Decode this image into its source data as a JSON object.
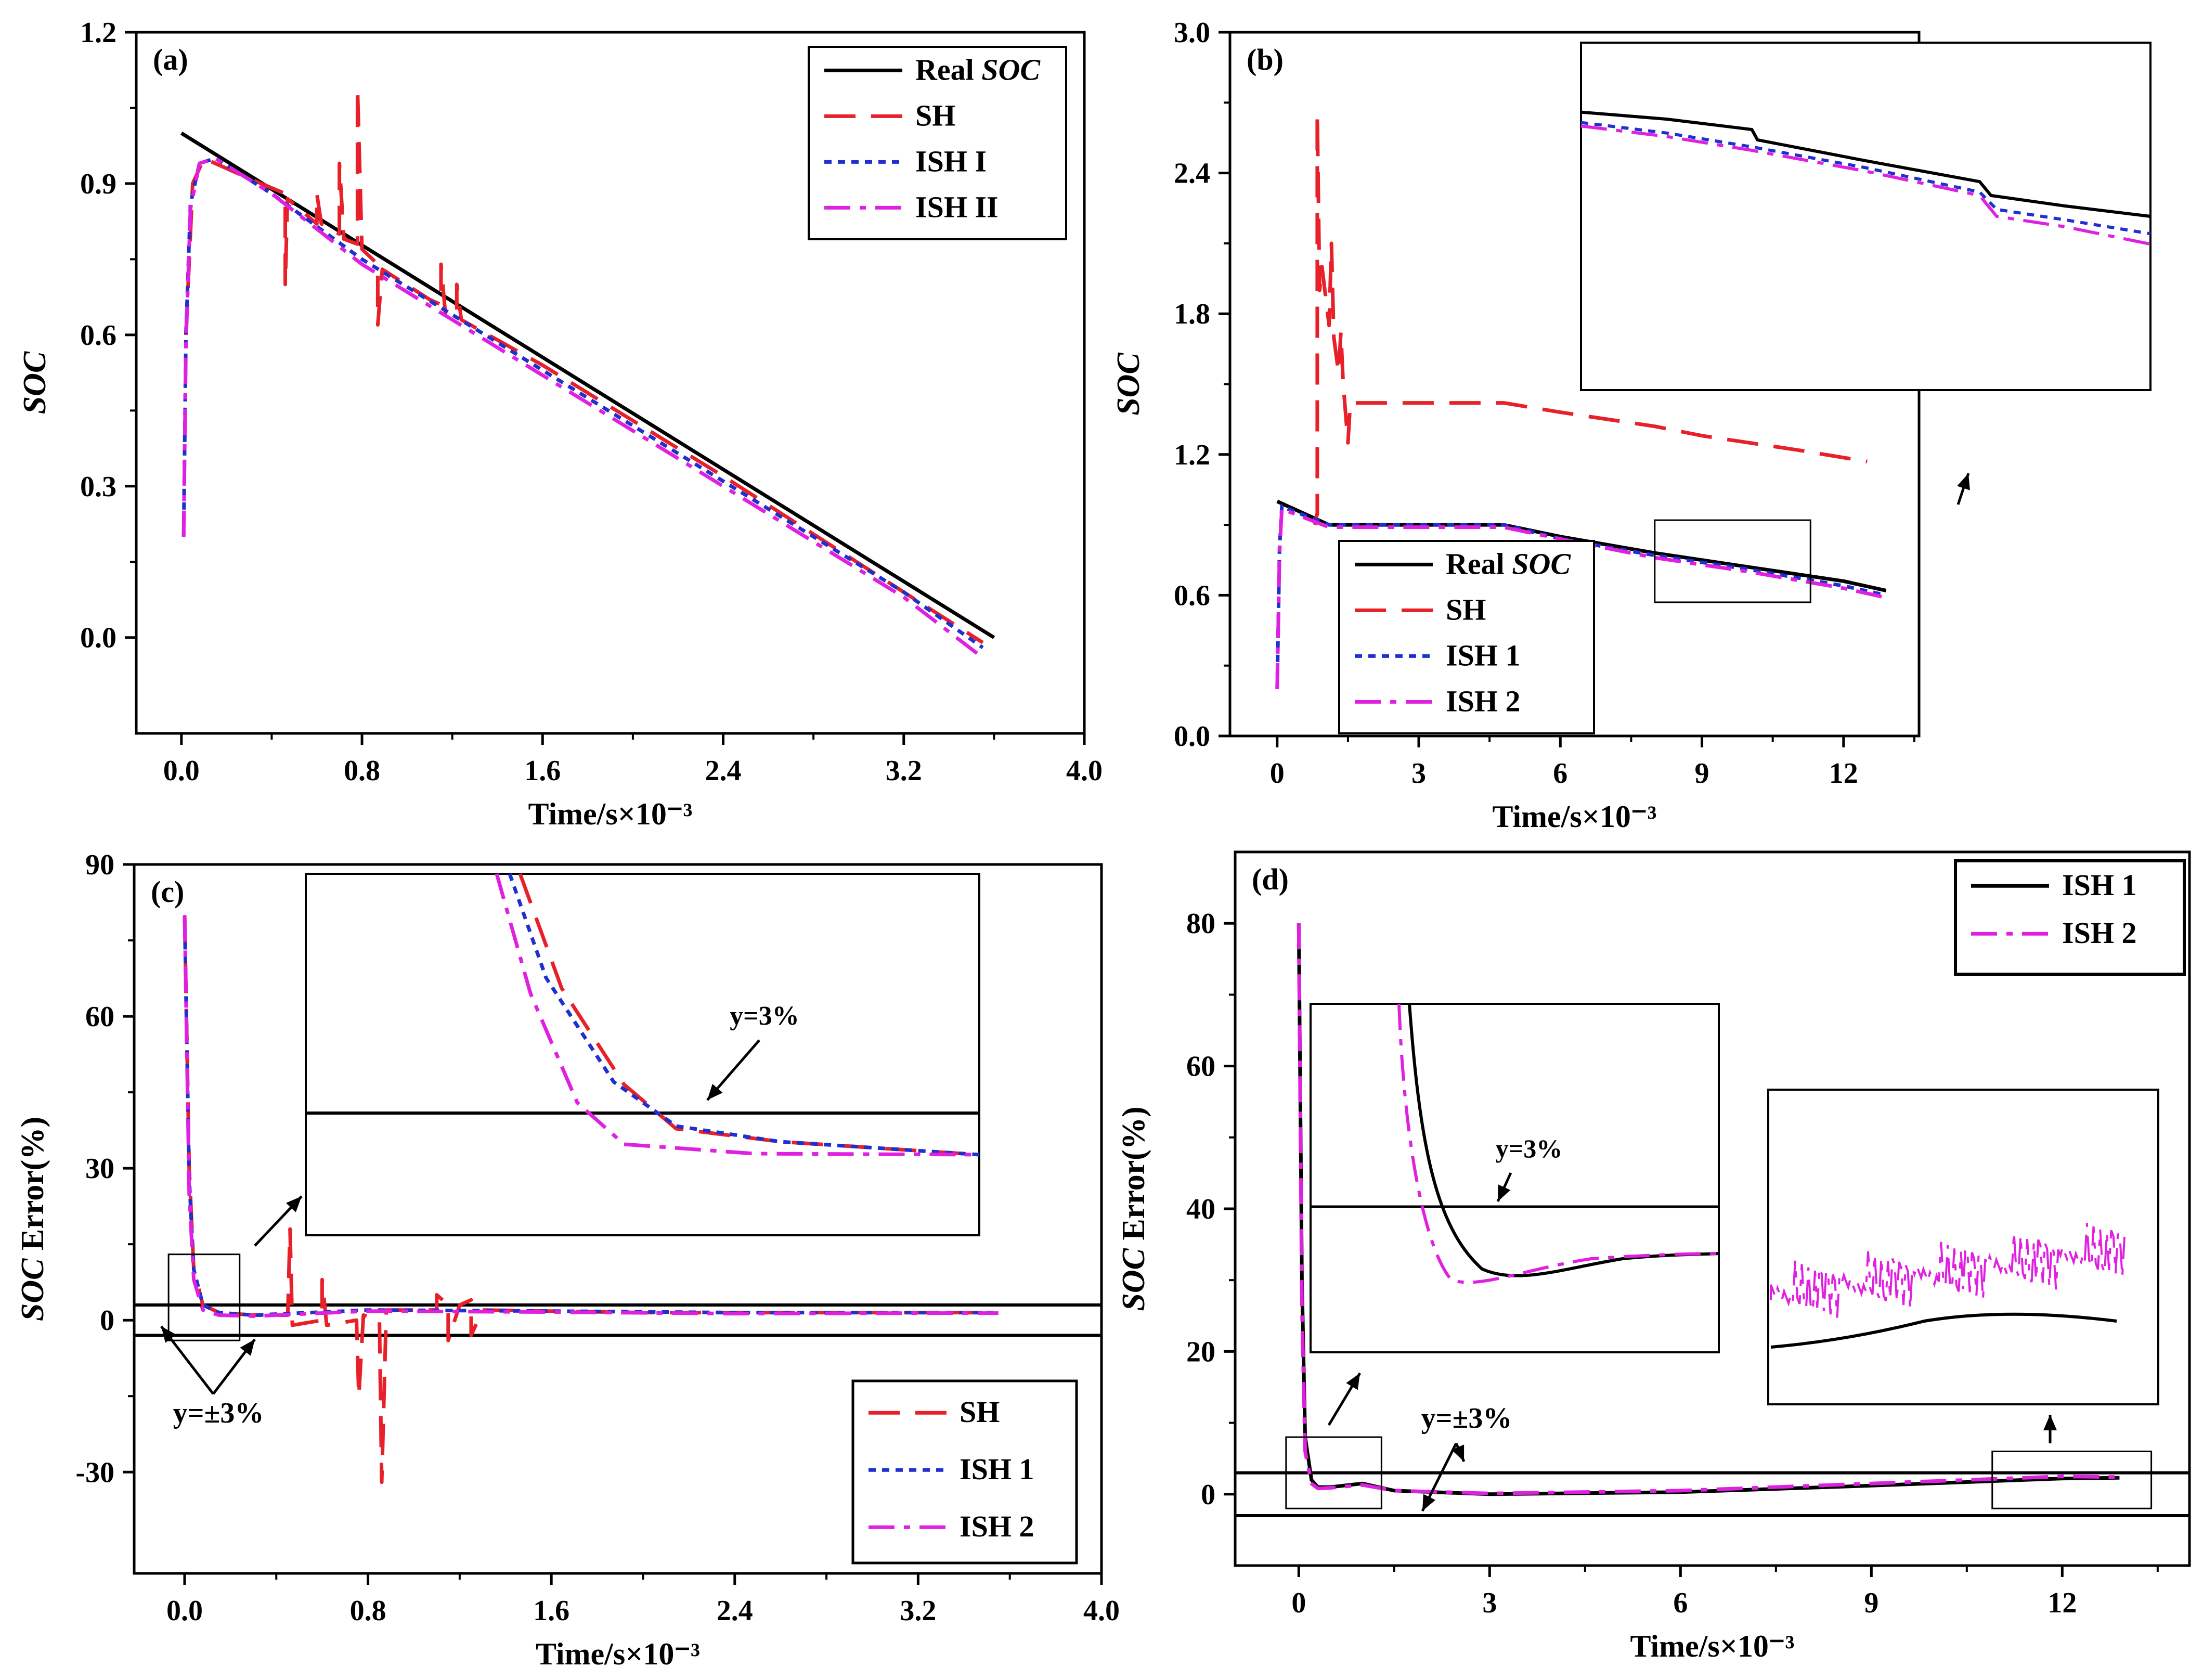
{
  "colors": {
    "real": "#000000",
    "sh": "#e8202a",
    "ish1": "#1f2fd0",
    "ish2": "#e020e0",
    "frame": "#000000"
  },
  "chart_data": [
    {
      "panel": "(a)",
      "type": "line",
      "xlabel": "Time/s×10⁻³",
      "ylabel": "SOC",
      "xlim": [
        -0.2,
        4.0
      ],
      "ylim": [
        -0.19,
        1.2
      ],
      "xticks": [
        "0.0",
        "0.8",
        "1.6",
        "2.4",
        "3.2",
        "4.0"
      ],
      "yticks": [
        "0.0",
        "0.3",
        "0.6",
        "0.9",
        "1.2"
      ],
      "legend_position": "top-right",
      "legend": [
        "Real SOC",
        "SH",
        "ISH I",
        "ISH II"
      ],
      "series": [
        {
          "name": "Real SOC",
          "style": "solid",
          "color": "#000000",
          "x": [
            0.0,
            3.6
          ],
          "y": [
            1.0,
            0.0
          ]
        },
        {
          "name": "SH",
          "style": "dashed",
          "color": "#e8202a",
          "x": [
            0.02,
            0.05,
            0.1,
            0.3,
            0.46,
            0.46,
            0.47,
            0.6,
            0.6,
            0.62,
            0.7,
            0.7,
            0.72,
            0.78,
            0.78,
            0.8,
            0.87,
            0.87,
            0.89,
            1.1,
            1.15,
            1.15,
            1.17,
            1.22,
            1.22,
            1.24,
            1.6,
            2.4,
            3.2,
            3.55
          ],
          "y": [
            0.6,
            0.9,
            0.95,
            0.91,
            0.88,
            0.7,
            0.87,
            0.82,
            0.88,
            0.82,
            0.8,
            0.94,
            0.79,
            0.78,
            1.09,
            0.77,
            0.74,
            0.62,
            0.73,
            0.67,
            0.66,
            0.74,
            0.64,
            0.64,
            0.7,
            0.63,
            0.54,
            0.32,
            0.09,
            -0.01
          ]
        },
        {
          "name": "ISH I",
          "style": "dotted",
          "color": "#1f2fd0",
          "x": [
            0.01,
            0.02,
            0.04,
            0.08,
            0.15,
            0.4,
            0.8,
            1.2,
            1.6,
            2.0,
            2.4,
            2.8,
            3.2,
            3.55
          ],
          "y": [
            0.2,
            0.6,
            0.86,
            0.94,
            0.95,
            0.88,
            0.75,
            0.64,
            0.53,
            0.42,
            0.31,
            0.2,
            0.09,
            -0.02
          ]
        },
        {
          "name": "ISH II",
          "style": "dashdot",
          "color": "#e020e0",
          "x": [
            0.01,
            0.02,
            0.04,
            0.08,
            0.15,
            0.4,
            0.8,
            1.2,
            1.6,
            2.0,
            2.4,
            2.8,
            3.2,
            3.55
          ],
          "y": [
            0.2,
            0.58,
            0.85,
            0.94,
            0.95,
            0.88,
            0.74,
            0.63,
            0.52,
            0.41,
            0.3,
            0.19,
            0.08,
            -0.04
          ]
        }
      ]
    },
    {
      "panel": "(b)",
      "type": "line",
      "xlabel": "Time/s×10⁻³",
      "ylabel": "SOC",
      "xlim": [
        -1,
        13.6
      ],
      "ylim": [
        0.0,
        3.0
      ],
      "xticks": [
        "0",
        "3",
        "6",
        "9",
        "12"
      ],
      "yticks": [
        "0.0",
        "0.6",
        "1.2",
        "1.8",
        "2.4",
        "3.0"
      ],
      "legend_position": "bottom-left",
      "legend": [
        "Real SOC",
        "SH",
        "ISH 1",
        "ISH 2"
      ],
      "series": [
        {
          "name": "Real SOC",
          "style": "solid",
          "color": "#000000",
          "x": [
            0.0,
            1.1,
            4.8,
            6.0,
            8.0,
            10.0,
            12.0,
            12.9
          ],
          "y": [
            1.0,
            0.9,
            0.9,
            0.85,
            0.78,
            0.72,
            0.66,
            0.62
          ]
        },
        {
          "name": "SH",
          "style": "dashed",
          "color": "#e8202a",
          "x": [
            0.8,
            0.85,
            0.85,
            0.9,
            0.95,
            1.1,
            1.15,
            1.2,
            1.3,
            1.35,
            1.4,
            1.5,
            1.55,
            4.8,
            6.0,
            8.0,
            9.0,
            11.0,
            12.5
          ],
          "y": [
            0.9,
            0.95,
            2.65,
            1.9,
            2.0,
            1.75,
            2.1,
            1.7,
            1.55,
            1.72,
            1.5,
            1.25,
            1.42,
            1.42,
            1.38,
            1.32,
            1.28,
            1.22,
            1.17
          ]
        },
        {
          "name": "ISH 1",
          "style": "dotted",
          "color": "#1f2fd0",
          "x": [
            0.0,
            0.05,
            0.1,
            0.2,
            1.1,
            4.8,
            6.0,
            8.0,
            10.0,
            12.0,
            12.9
          ],
          "y": [
            0.2,
            0.8,
            0.98,
            0.97,
            0.9,
            0.9,
            0.84,
            0.77,
            0.71,
            0.64,
            0.6
          ]
        },
        {
          "name": "ISH 2",
          "style": "dashdot",
          "color": "#e020e0",
          "x": [
            0.0,
            0.05,
            0.1,
            0.2,
            1.1,
            4.8,
            6.0,
            8.0,
            10.0,
            12.0,
            12.9
          ],
          "y": [
            0.2,
            0.78,
            0.97,
            0.96,
            0.89,
            0.89,
            0.84,
            0.76,
            0.7,
            0.63,
            0.59
          ]
        }
      ],
      "inset_series": [
        {
          "name": "Real SOC",
          "color": "#000000",
          "style": "solid",
          "x": [
            0,
            0.15,
            0.3,
            0.31,
            0.5,
            0.7,
            0.72,
            0.85,
            1.0
          ],
          "y": [
            0.8,
            0.78,
            0.75,
            0.72,
            0.66,
            0.6,
            0.56,
            0.53,
            0.5
          ]
        },
        {
          "name": "ISH 1",
          "color": "#1f2fd0",
          "style": "dotted",
          "x": [
            0,
            0.15,
            0.3,
            0.5,
            0.7,
            0.73,
            0.85,
            1.0
          ],
          "y": [
            0.77,
            0.74,
            0.7,
            0.64,
            0.57,
            0.52,
            0.49,
            0.45
          ]
        },
        {
          "name": "ISH 2",
          "color": "#e020e0",
          "style": "dashdot",
          "x": [
            0,
            0.15,
            0.3,
            0.5,
            0.7,
            0.73,
            0.85,
            1.0
          ],
          "y": [
            0.76,
            0.73,
            0.69,
            0.63,
            0.56,
            0.5,
            0.47,
            0.42
          ]
        }
      ]
    },
    {
      "panel": "(c)",
      "type": "line",
      "xlabel": "Time/s×10⁻³",
      "ylabel_prefix": "SOC",
      "ylabel_suffix": " Error(%)",
      "xlim": [
        -0.22,
        4.0
      ],
      "ylim": [
        -50,
        90
      ],
      "xticks": [
        "0.0",
        "0.8",
        "1.6",
        "2.4",
        "3.2",
        "4.0"
      ],
      "yticks": [
        "-30",
        "0",
        "30",
        "60",
        "90"
      ],
      "legend_position": "bottom-right",
      "legend": [
        "SH",
        "ISH 1",
        "ISH 2"
      ],
      "annotations": [
        "y=±3%",
        "y=3%"
      ],
      "series": [
        {
          "name": "SH",
          "style": "dashed",
          "color": "#e8202a",
          "x": [
            0.0,
            0.02,
            0.04,
            0.08,
            0.15,
            0.3,
            0.45,
            0.46,
            0.47,
            0.6,
            0.6,
            0.62,
            0.75,
            0.76,
            0.78,
            0.85,
            0.86,
            0.88,
            1.1,
            1.1,
            1.15,
            1.15,
            1.2,
            1.25,
            1.25,
            1.3,
            2.0,
            3.0,
            3.55
          ],
          "y": [
            80,
            30,
            10,
            3,
            1.5,
            1,
            1,
            18,
            -1,
            0,
            8,
            -1,
            0,
            -15,
            1,
            0,
            -32,
            2,
            2,
            5,
            3,
            -4,
            3,
            4,
            -3,
            2,
            1.5,
            1.5,
            1.5
          ]
        },
        {
          "name": "ISH 1",
          "style": "dotted",
          "color": "#1f2fd0",
          "x": [
            0.0,
            0.02,
            0.04,
            0.08,
            0.15,
            0.3,
            0.8,
            1.6,
            2.4,
            3.2,
            3.55
          ],
          "y": [
            80,
            28,
            10,
            3,
            1.5,
            1,
            2,
            1.8,
            1.5,
            1.5,
            1.5
          ]
        },
        {
          "name": "ISH 2",
          "style": "dashdot",
          "color": "#e020e0",
          "x": [
            0.0,
            0.02,
            0.04,
            0.08,
            0.15,
            0.3,
            0.8,
            1.6,
            2.4,
            3.2,
            3.55
          ],
          "y": [
            80,
            25,
            8,
            2,
            1,
            0.8,
            1.8,
            1.6,
            1.3,
            1.4,
            1.4
          ]
        }
      ],
      "reference_lines": [
        3,
        -3
      ]
    },
    {
      "panel": "(d)",
      "type": "line",
      "xlabel": "Time/s×10⁻³",
      "ylabel_prefix": "SOC",
      "ylabel_suffix": " Error(%)",
      "xlim": [
        -1,
        14
      ],
      "ylim": [
        -10,
        90
      ],
      "xticks": [
        "0",
        "3",
        "6",
        "9",
        "12"
      ],
      "yticks": [
        "0",
        "20",
        "40",
        "60",
        "80"
      ],
      "legend_position": "top-right",
      "legend": [
        "ISH 1",
        "ISH 2"
      ],
      "annotations": [
        "y=±3%",
        "y=3%"
      ],
      "series": [
        {
          "name": "ISH 1",
          "style": "solid",
          "color": "#000000",
          "x": [
            0.0,
            0.05,
            0.1,
            0.2,
            0.3,
            0.5,
            1.0,
            1.5,
            3.0,
            6.0,
            9.0,
            12.0,
            12.9
          ],
          "y": [
            80,
            30,
            8,
            2,
            1,
            1,
            1.5,
            0.5,
            0,
            0.3,
            1.2,
            2.2,
            2.3
          ]
        },
        {
          "name": "ISH 2",
          "style": "dashdot",
          "color": "#e020e0",
          "x": [
            0.0,
            0.05,
            0.1,
            0.2,
            0.3,
            0.5,
            1.0,
            1.5,
            3.0,
            6.0,
            9.0,
            12.0,
            12.9
          ],
          "y": [
            80,
            26,
            6,
            1.5,
            0.8,
            0.9,
            1.3,
            0.5,
            0.1,
            0.5,
            1.5,
            2.5,
            2.4
          ]
        }
      ],
      "reference_lines": [
        3,
        -3
      ]
    }
  ],
  "panels": {
    "a": {
      "tag": "(a)",
      "legend": [
        {
          "text": "Real ",
          "italic": "SOC"
        },
        {
          "text": "SH",
          "italic": ""
        },
        {
          "text": "ISH I",
          "italic": ""
        },
        {
          "text": "ISH II",
          "italic": ""
        }
      ]
    },
    "b": {
      "tag": "(b)",
      "legend": [
        {
          "text": "Real ",
          "italic": "SOC"
        },
        {
          "text": "SH",
          "italic": ""
        },
        {
          "text": "ISH 1",
          "italic": ""
        },
        {
          "text": "ISH 2",
          "italic": ""
        }
      ]
    },
    "c": {
      "tag": "(c)",
      "ann_pm": "y=±3%",
      "ann_3": "y=3%",
      "legend": [
        {
          "text": "SH",
          "italic": ""
        },
        {
          "text": "ISH 1",
          "italic": ""
        },
        {
          "text": "ISH 2",
          "italic": ""
        }
      ]
    },
    "d": {
      "tag": "(d)",
      "ann_pm": "y=±3%",
      "ann_3": "y=3%",
      "legend": [
        {
          "text": "ISH 1",
          "italic": ""
        },
        {
          "text": "ISH 2",
          "italic": ""
        }
      ]
    }
  }
}
